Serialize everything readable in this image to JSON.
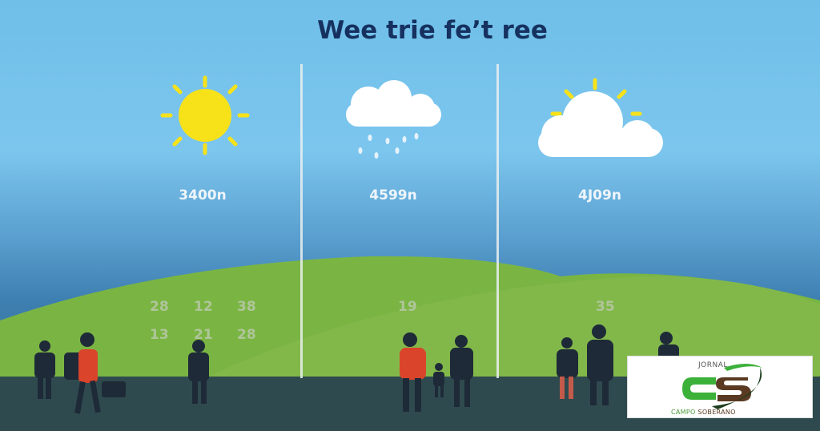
{
  "title": "Wee trie fe’t ree",
  "panels": [
    {
      "icon": "sun-icon",
      "temperature": "3400n",
      "numbers": [
        "28",
        "12",
        "38",
        "13",
        "21",
        "28"
      ]
    },
    {
      "icon": "rain-cloud-icon",
      "temperature": "4599n",
      "numbers": [
        "19"
      ]
    },
    {
      "icon": "partly-cloudy-icon",
      "temperature": "4J09n",
      "numbers": [
        "35"
      ]
    }
  ],
  "logo": {
    "top": "JORNAL",
    "initials": "CS",
    "bottom_a": "CAMPO",
    "bottom_b": "SOBERANO"
  },
  "colors": {
    "sun": "#f7e21a",
    "title": "#16315f",
    "grass": "#6ea83a",
    "logo_green": "#3cb13a",
    "logo_brown": "#5a3a22"
  }
}
